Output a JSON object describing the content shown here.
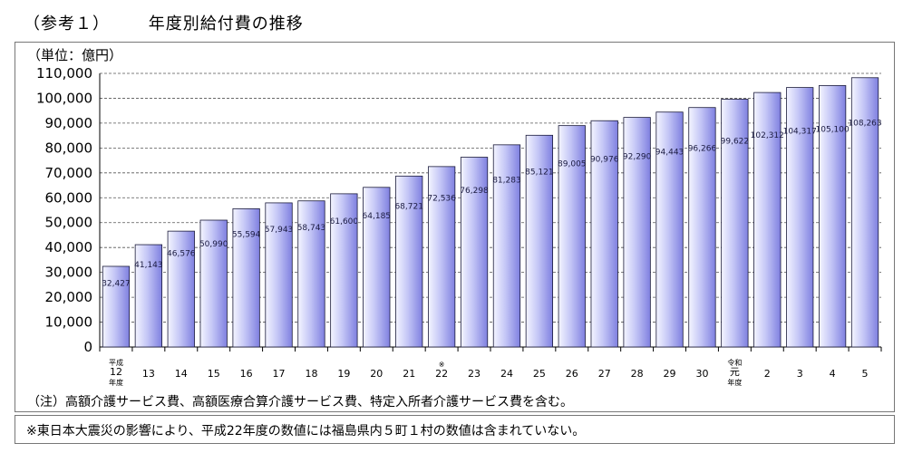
{
  "title": {
    "ref": "（参考１）",
    "text": "年度別給付費の推移"
  },
  "unit_label": "（単位：億円）",
  "note1": "（注）高額介護サービス費、高額医療合算介護サービス費、特定入所者介護サービス費を含む。",
  "note2": "※東日本大震災の影響により、平成22年度の数値には福島県内５町１村の数値は含まれていない。",
  "colors": {
    "bar_light": "#eef0ff",
    "bar_dark": "#8c8ce6",
    "bar_stroke": "#1a1a3a",
    "grid": "#555555"
  },
  "chart_data": {
    "type": "bar",
    "title": "年度別給付費の推移",
    "ylabel": "（単位：億円）",
    "ylim": [
      0,
      110000
    ],
    "yticks": [
      "0",
      "10,000",
      "20,000",
      "30,000",
      "40,000",
      "50,000",
      "60,000",
      "70,000",
      "80,000",
      "90,000",
      "100,000",
      "110,000"
    ],
    "grid": "horizontal dashed",
    "categories": [
      [
        "平成",
        "12",
        "年度"
      ],
      [
        "13"
      ],
      [
        "14"
      ],
      [
        "15"
      ],
      [
        "16"
      ],
      [
        "17"
      ],
      [
        "18"
      ],
      [
        "19"
      ],
      [
        "20"
      ],
      [
        "21"
      ],
      [
        "※",
        "22"
      ],
      [
        "23"
      ],
      [
        "24"
      ],
      [
        "25"
      ],
      [
        "26"
      ],
      [
        "27"
      ],
      [
        "28"
      ],
      [
        "29"
      ],
      [
        "30"
      ],
      [
        "令和",
        "元",
        "年度"
      ],
      [
        "2"
      ],
      [
        "3"
      ],
      [
        "4"
      ],
      [
        "5"
      ]
    ],
    "values": [
      32427,
      41143,
      46576,
      50990,
      55594,
      57943,
      58743,
      61600,
      64185,
      68721,
      72536,
      76298,
      81283,
      85121,
      89005,
      90976,
      92290,
      94443,
      96266,
      99622,
      102312,
      104317,
      105100,
      108263
    ],
    "value_labels": [
      "32,427",
      "41,143",
      "46,576",
      "50,990",
      "55,594",
      "57,943",
      "58,743",
      "61,600",
      "64,185",
      "68,721",
      "72,536",
      "76,298",
      "81,283",
      "85,121",
      "89,005",
      "90,976",
      "92,290",
      "94,443",
      "96,266",
      "99,622",
      "102,312",
      "104,317",
      "105,100",
      "108,263"
    ]
  }
}
